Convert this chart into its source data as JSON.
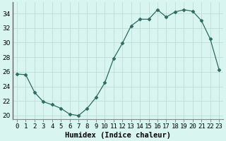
{
  "x": [
    0,
    1,
    2,
    3,
    4,
    5,
    6,
    7,
    8,
    9,
    10,
    11,
    12,
    13,
    14,
    15,
    16,
    17,
    18,
    19,
    20,
    21,
    22,
    23
  ],
  "y": [
    25.7,
    25.6,
    23.2,
    21.9,
    21.5,
    21.0,
    20.2,
    20.0,
    21.0,
    22.5,
    24.5,
    27.8,
    29.9,
    32.3,
    33.2,
    33.2,
    34.5,
    33.5,
    34.2,
    34.5,
    34.3,
    33.0,
    30.5,
    26.3
  ],
  "line_color": "#2d6b5e",
  "marker": "D",
  "marker_size": 2.5,
  "bg_color": "#d8f5f0",
  "grid_color": "#c0ddd8",
  "xlabel": "Humidex (Indice chaleur)",
  "ylim": [
    19.5,
    35.5
  ],
  "xlim": [
    -0.5,
    23.5
  ],
  "yticks": [
    20,
    22,
    24,
    26,
    28,
    30,
    32,
    34
  ],
  "xtick_labels": [
    "0",
    "1",
    "2",
    "3",
    "4",
    "5",
    "6",
    "7",
    "8",
    "9",
    "10",
    "11",
    "12",
    "13",
    "14",
    "15",
    "16",
    "17",
    "18",
    "19",
    "20",
    "21",
    "22",
    "23"
  ],
  "label_fontsize": 7.5,
  "tick_fontsize": 6.5,
  "spine_color": "#888888",
  "left_spine_color": "#666666"
}
